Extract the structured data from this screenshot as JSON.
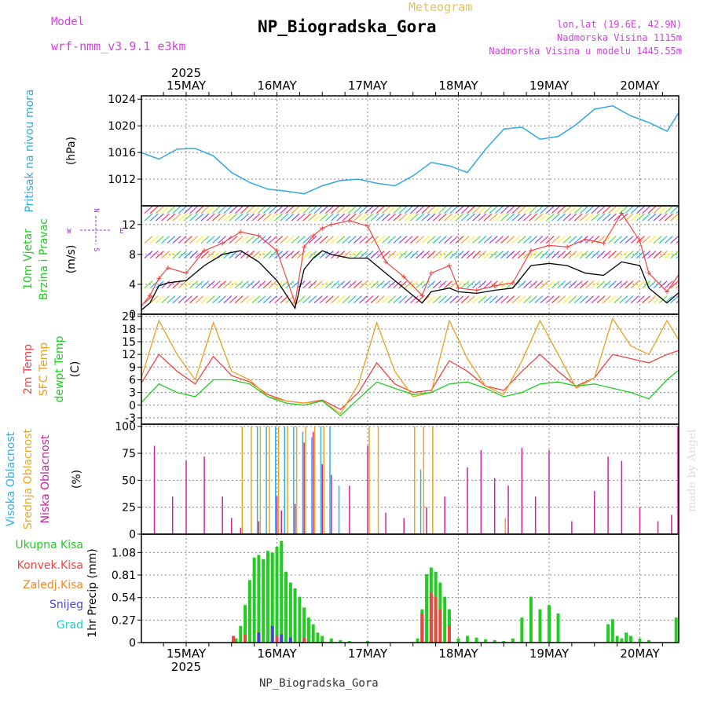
{
  "header": {
    "model_label": "Model",
    "model_name": "wrf-nmm_v3.9.1  e3km",
    "meteogram_label": "Meteogram",
    "station_title": "NP_Biogradska_Gora",
    "lonlat": "lon,lat (19.6E, 42.9N)",
    "elevation": "Nadmorska Visina 1115m",
    "model_elevation": "Nadmorska Visina u modelu 1445.55m",
    "footer_station": "NP_Biogradska_Gora",
    "credit": "made by Angel",
    "year": "2025"
  },
  "colors": {
    "model": "#cc44dd",
    "meteogram": "#e8c060",
    "pressure": "#30a8e0",
    "wind_green": "#22cc22",
    "temp2m": "#ee4444",
    "sfc": "#e8a020",
    "dewpt": "#22cc22",
    "cloud_high": "#30b0e8",
    "cloud_mid": "#e8a820",
    "cloud_low": "#cc2299",
    "rain_total": "#22cc22",
    "rain_conv": "#ee4444",
    "rain_frz": "#ee8822",
    "snow": "#4444cc",
    "grad": "#22cccc"
  },
  "chart_data": [
    {
      "type": "line",
      "panel": "pressure",
      "title": "Pritisak na nivou mora",
      "ylabel": "(hPa)",
      "x_ticks": [
        "15MAY",
        "16MAY",
        "17MAY",
        "18MAY",
        "19MAY",
        "20MAY"
      ],
      "y_ticks": [
        1012,
        1016,
        1020,
        1024
      ],
      "ylim": [
        1008,
        1024.5
      ],
      "x_days": [
        0,
        0.2,
        0.4,
        0.6,
        0.8,
        1.0,
        1.2,
        1.4,
        1.6,
        1.8,
        2.0,
        2.2,
        2.4,
        2.6,
        2.8,
        3.0,
        3.2,
        3.4,
        3.6,
        3.8,
        4.0,
        4.2,
        4.4,
        4.6,
        4.8,
        5.0,
        5.2,
        5.4,
        5.6,
        5.8,
        5.94
      ],
      "series": [
        {
          "name": "Pritisak",
          "values": [
            1016.0,
            1015.0,
            1016.5,
            1016.6,
            1015.5,
            1013.0,
            1011.5,
            1010.5,
            1010.2,
            1009.8,
            1011.0,
            1011.8,
            1012.0,
            1011.4,
            1011.0,
            1012.5,
            1014.5,
            1014.0,
            1013.0,
            1016.5,
            1019.5,
            1019.8,
            1018.0,
            1018.4,
            1020.2,
            1022.5,
            1023.0,
            1021.5,
            1020.5,
            1019.2,
            1022.2
          ]
        }
      ]
    },
    {
      "type": "line",
      "panel": "wind",
      "title_1": "10m Vjetar",
      "title_2": "Brzina i Pravac",
      "ylabel": "(m/s)",
      "y_ticks": [
        0,
        4,
        8,
        12
      ],
      "ylim": [
        0,
        14.5
      ],
      "compass": {
        "north": "N",
        "south": "S",
        "west": "W",
        "east": "E"
      },
      "wind_rows_mps": [
        1.5,
        3.5,
        7.5,
        9.5,
        12.5,
        13.5
      ],
      "x_days": [
        0,
        0.1,
        0.2,
        0.3,
        0.5,
        0.7,
        0.9,
        1.1,
        1.3,
        1.5,
        1.7,
        1.8,
        1.9,
        2.0,
        2.1,
        2.3,
        2.5,
        2.7,
        2.9,
        3.1,
        3.2,
        3.4,
        3.5,
        3.7,
        3.9,
        4.1,
        4.3,
        4.5,
        4.7,
        4.9,
        5.1,
        5.3,
        5.5,
        5.6,
        5.8,
        5.94
      ],
      "series": [
        {
          "name": "gusts",
          "color": "#ee4444",
          "values": [
            1.0,
            2.5,
            4.8,
            6.2,
            5.5,
            8.5,
            9.5,
            11.0,
            10.5,
            8.5,
            1.5,
            9.0,
            10.5,
            11.5,
            12.0,
            12.5,
            11.8,
            7.0,
            5.0,
            2.5,
            5.5,
            6.5,
            3.5,
            3.2,
            3.8,
            4.2,
            8.5,
            9.2,
            9.0,
            10.0,
            9.5,
            13.5,
            9.8,
            5.5,
            3.0,
            5.5
          ]
        },
        {
          "name": "speed",
          "color": "#000000",
          "values": [
            0.5,
            1.5,
            3.8,
            4.2,
            4.5,
            6.5,
            8.0,
            8.5,
            7.0,
            4.5,
            0.8,
            6.0,
            7.5,
            8.5,
            8.0,
            7.5,
            7.5,
            5.5,
            3.5,
            1.5,
            3.0,
            3.5,
            3.0,
            2.8,
            3.2,
            3.5,
            6.5,
            6.8,
            6.5,
            5.5,
            5.2,
            7.0,
            6.5,
            3.5,
            1.5,
            3.0
          ]
        }
      ]
    },
    {
      "type": "line",
      "panel": "temperature",
      "title_1": "2m Temp",
      "title_2": "SFC Temp",
      "title_3": "dewpt Temp",
      "ylabel": "(C)",
      "y_ticks": [
        -3,
        0,
        3,
        6,
        9,
        12,
        15,
        18,
        21
      ],
      "ylim": [
        -4.5,
        21.5
      ],
      "x_days": [
        0,
        0.2,
        0.4,
        0.6,
        0.8,
        1.0,
        1.2,
        1.4,
        1.6,
        1.8,
        2.0,
        2.2,
        2.4,
        2.6,
        2.8,
        3.0,
        3.2,
        3.4,
        3.6,
        3.8,
        4.0,
        4.2,
        4.4,
        4.6,
        4.8,
        5.0,
        5.2,
        5.4,
        5.6,
        5.8,
        5.94
      ],
      "series": [
        {
          "name": "2m Temp",
          "color": "#ee4444",
          "values": [
            5.0,
            12.0,
            8.0,
            5.0,
            11.5,
            7.0,
            5.5,
            2.5,
            1.0,
            0.5,
            1.2,
            -1.0,
            3.0,
            10.0,
            5.0,
            3.0,
            3.5,
            10.5,
            8.0,
            4.5,
            3.5,
            8.0,
            12.0,
            8.0,
            4.5,
            6.5,
            12.0,
            11.0,
            10.0,
            12.0,
            13.0
          ]
        },
        {
          "name": "SFC Temp",
          "color": "#e8a020",
          "values": [
            6.0,
            20.0,
            12.0,
            6.0,
            19.5,
            8.0,
            6.0,
            2.0,
            1.0,
            0.5,
            1.0,
            -2.0,
            5.0,
            19.5,
            8.0,
            2.0,
            3.0,
            20.0,
            11.0,
            4.5,
            2.5,
            10.5,
            20.0,
            12.0,
            4.0,
            6.5,
            20.5,
            14.0,
            12.0,
            20.0,
            15.0
          ]
        },
        {
          "name": "dewpt Temp",
          "color": "#22cc22",
          "values": [
            0.5,
            5.0,
            3.0,
            2.0,
            6.0,
            6.0,
            5.0,
            2.0,
            0.5,
            0.0,
            1.0,
            -2.5,
            1.5,
            5.5,
            4.0,
            2.5,
            3.0,
            5.0,
            5.5,
            4.0,
            2.0,
            3.0,
            5.0,
            5.5,
            4.5,
            5.0,
            4.0,
            3.0,
            1.5,
            6.0,
            8.5
          ]
        }
      ]
    },
    {
      "type": "bar",
      "panel": "clouds",
      "title_1": "Visoka Oblacnost",
      "title_2": "Srednja Oblacnost",
      "title_3": "Niska Oblacnost",
      "ylabel": "(%)",
      "y_ticks": [
        0,
        25,
        50,
        75,
        100
      ],
      "ylim": [
        0,
        102
      ],
      "series": [
        {
          "name": "Niska Oblacnost",
          "color": "#cc2299",
          "x_days": [
            0.15,
            0.35,
            0.5,
            0.7,
            0.9,
            1.0,
            1.1,
            1.3,
            1.5,
            1.55,
            1.7,
            1.8,
            1.9,
            2.0,
            2.1,
            2.3,
            2.5,
            2.7,
            2.9,
            3.15,
            3.35,
            3.6,
            3.75,
            3.9,
            4.05,
            4.2,
            4.35,
            4.5,
            4.75,
            5.0,
            5.15,
            5.3,
            5.5,
            5.7,
            5.85,
            5.92
          ],
          "values": [
            82,
            35,
            68,
            72,
            35,
            15,
            6,
            12,
            35,
            22,
            28,
            85,
            95,
            65,
            55,
            45,
            82,
            20,
            15,
            25,
            35,
            62,
            78,
            52,
            45,
            80,
            35,
            78,
            12,
            40,
            72,
            68,
            25,
            12,
            18,
            100
          ]
        },
        {
          "name": "Srednja Oblacnost",
          "color": "#e8a820",
          "x_days": [
            1.1,
            1.2,
            1.3,
            1.4,
            1.5,
            1.6,
            1.7,
            1.8,
            1.9,
            2.0,
            2.5,
            2.6,
            3.0,
            3.1,
            3.2,
            4.0,
            5.92
          ],
          "values": [
            100,
            100,
            100,
            100,
            100,
            100,
            100,
            100,
            100,
            100,
            100,
            100,
            100,
            100,
            100,
            15,
            10
          ]
        },
        {
          "name": "Visoka Oblacnost",
          "color": "#30b0e8",
          "x_days": [
            1.25,
            1.35,
            1.45,
            1.55,
            1.65,
            1.75,
            1.85,
            1.95,
            2.05,
            2.15,
            3.05
          ],
          "values": [
            100,
            100,
            100,
            100,
            100,
            95,
            90,
            100,
            100,
            45,
            60
          ]
        }
      ]
    },
    {
      "type": "bar",
      "panel": "precipitation",
      "title_1": "Ukupna Kisa",
      "title_2": "Konvek.Kisa",
      "title_3": "Zaledj.Kisa",
      "title_4": "Snijeg",
      "title_5": "Grad",
      "ylabel": "1hr Precip (mm)",
      "y_ticks": [
        0,
        0.27,
        0.54,
        0.81,
        1.08
      ],
      "y_tick_labels": [
        "0",
        "0.27",
        "0.54",
        "0.81",
        "1.08"
      ],
      "ylim": [
        0,
        1.3
      ],
      "series": [
        {
          "name": "Ukupna Kisa",
          "color": "#22cc22",
          "x_days": [
            1.05,
            1.1,
            1.15,
            1.2,
            1.25,
            1.3,
            1.35,
            1.4,
            1.45,
            1.5,
            1.55,
            1.6,
            1.65,
            1.7,
            1.75,
            1.8,
            1.85,
            1.9,
            1.95,
            2.0,
            2.1,
            2.2,
            2.3,
            2.5,
            3.05,
            3.1,
            3.15,
            3.2,
            3.25,
            3.3,
            3.35,
            3.4,
            3.5,
            3.6,
            3.7,
            3.8,
            3.9,
            4.0,
            4.1,
            4.2,
            4.3,
            4.4,
            4.5,
            4.6,
            5.15,
            5.2,
            5.25,
            5.3,
            5.35,
            5.4,
            5.5,
            5.6,
            5.9
          ],
          "values": [
            0.05,
            0.2,
            0.45,
            0.75,
            1.02,
            1.05,
            1.0,
            1.1,
            1.08,
            1.15,
            1.22,
            0.85,
            0.72,
            0.65,
            0.55,
            0.42,
            0.3,
            0.22,
            0.12,
            0.08,
            0.05,
            0.03,
            0.02,
            0.02,
            0.05,
            0.4,
            0.82,
            0.9,
            0.85,
            0.72,
            0.55,
            0.4,
            0.05,
            0.08,
            0.06,
            0.04,
            0.03,
            0.02,
            0.05,
            0.3,
            0.55,
            0.4,
            0.45,
            0.35,
            0.22,
            0.28,
            0.08,
            0.05,
            0.12,
            0.08,
            0.05,
            0.03,
            0.3
          ]
        },
        {
          "name": "Konvek.Kisa",
          "color": "#ee4444",
          "x_days": [
            1.02,
            1.15,
            1.3,
            1.5,
            1.8,
            3.1,
            3.2,
            3.25,
            3.3,
            3.4,
            5.94
          ],
          "values": [
            0.08,
            0.1,
            0.12,
            0.08,
            0.06,
            0.35,
            0.6,
            0.55,
            0.4,
            0.2,
            0.38
          ]
        },
        {
          "name": "Snijeg",
          "color": "#4444cc",
          "x_days": [
            1.3,
            1.45,
            1.55,
            1.65
          ],
          "values": [
            0.12,
            0.2,
            0.1,
            0.06
          ]
        }
      ]
    }
  ]
}
